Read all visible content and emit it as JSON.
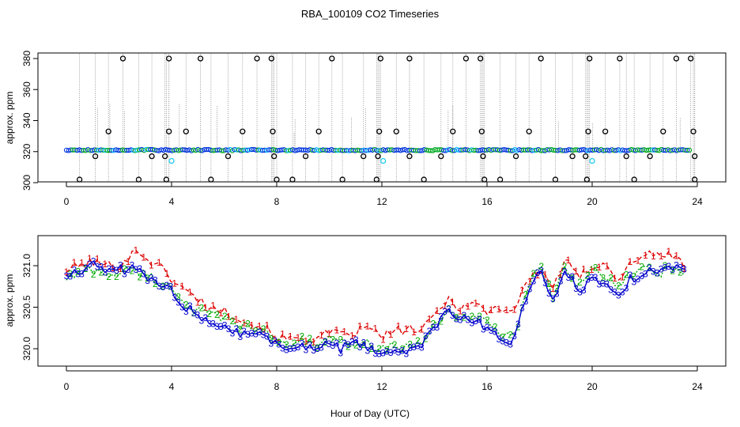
{
  "chart_data": [
    {
      "type": "scatter",
      "title": "RBA_100109  CO2 Timeseries",
      "xlabel": "",
      "ylabel": "approx. ppm",
      "xlim": [
        0,
        24
      ],
      "ylim": [
        300,
        380
      ],
      "xticks": [
        0,
        4,
        8,
        12,
        16,
        20,
        24
      ],
      "xtick_labels": [
        "0",
        "4",
        "8",
        "12",
        "16",
        "20",
        "24"
      ],
      "yticks": [
        300,
        320,
        340,
        360,
        380
      ],
      "ytick_labels": [
        "300",
        "320",
        "340",
        "360",
        "380"
      ],
      "baseline": 321,
      "spike_high_times": [
        2.15,
        3.9,
        5.1,
        7.25,
        7.8,
        10.1,
        11.95,
        13.05,
        15.2,
        15.75,
        18.05,
        19.9,
        21.05,
        23.2,
        23.75
      ],
      "spike_low_times": [
        0.5,
        2.75,
        3.8,
        5.5,
        8.0,
        8.6,
        10.5,
        11.8,
        13.6,
        15.9,
        16.5,
        18.6,
        19.8,
        21.6,
        23.9
      ],
      "mid_high": [
        [
          1.6,
          333
        ],
        [
          3.9,
          333
        ],
        [
          4.55,
          333
        ],
        [
          6.7,
          333
        ],
        [
          7.85,
          333
        ],
        [
          9.6,
          333
        ],
        [
          11.9,
          333
        ],
        [
          12.55,
          333
        ],
        [
          14.7,
          333
        ],
        [
          15.8,
          333
        ],
        [
          17.6,
          333
        ],
        [
          19.85,
          333
        ],
        [
          20.5,
          333
        ],
        [
          22.7,
          333
        ],
        [
          23.85,
          333
        ]
      ],
      "mid_low": [
        [
          1.1,
          317
        ],
        [
          3.25,
          317
        ],
        [
          3.75,
          317
        ],
        [
          6.15,
          317
        ],
        [
          7.9,
          317
        ],
        [
          9.1,
          317
        ],
        [
          11.3,
          317
        ],
        [
          11.85,
          317
        ],
        [
          13.05,
          317
        ],
        [
          14.25,
          317
        ],
        [
          15.85,
          317
        ],
        [
          17.1,
          317
        ],
        [
          19.25,
          317
        ],
        [
          19.75,
          317
        ],
        [
          21.3,
          317
        ],
        [
          22.2,
          317
        ],
        [
          23.9,
          317
        ]
      ],
      "cyan_points": [
        [
          4.0,
          314
        ],
        [
          12.05,
          314
        ],
        [
          20.0,
          314
        ]
      ],
      "legend": []
    },
    {
      "type": "line",
      "title": "",
      "xlabel": "Hour of Day (UTC)",
      "ylabel": "approx. ppm",
      "xlim": [
        0,
        24
      ],
      "ylim": [
        319.85,
        321.35
      ],
      "xticks": [
        0,
        4,
        8,
        12,
        16,
        20,
        24
      ],
      "xtick_labels": [
        "0",
        "4",
        "8",
        "12",
        "16",
        "20",
        "24"
      ],
      "yticks": [
        320.0,
        320.5,
        321.0
      ],
      "ytick_labels": [
        "320.0",
        "320.5",
        "321.0"
      ],
      "series": [
        {
          "name": "1",
          "color": "#dd0000",
          "x": [
            0.0,
            0.5,
            1.0,
            1.5,
            2.0,
            2.4,
            2.7,
            3.0,
            3.5,
            4.0,
            4.5,
            5.0,
            5.5,
            6.0,
            6.5,
            7.0,
            7.5,
            8.0,
            8.5,
            9.0,
            9.5,
            10.0,
            10.5,
            11.0,
            11.5,
            12.0,
            12.5,
            13.0,
            13.5,
            14.0,
            14.5,
            15.0,
            15.5,
            16.0,
            16.5,
            17.0,
            17.5,
            18.0,
            18.5,
            19.0,
            19.5,
            20.0,
            20.5,
            21.0,
            21.5,
            22.0,
            22.5,
            23.0,
            23.5
          ],
          "y": [
            320.95,
            321.0,
            321.05,
            321.0,
            321.0,
            321.1,
            321.2,
            321.1,
            321.0,
            320.85,
            320.7,
            320.6,
            320.5,
            320.45,
            320.4,
            320.3,
            320.25,
            320.15,
            320.1,
            320.15,
            320.1,
            320.2,
            320.15,
            320.2,
            320.25,
            320.15,
            320.2,
            320.25,
            320.2,
            320.4,
            320.6,
            320.5,
            320.55,
            320.45,
            320.5,
            320.45,
            320.8,
            320.95,
            320.75,
            321.05,
            320.85,
            321.0,
            321.05,
            320.8,
            321.05,
            321.15,
            321.1,
            321.15,
            321.0
          ]
        },
        {
          "name": "2",
          "color": "#00aa00",
          "x": [
            0.0,
            0.5,
            1.0,
            1.5,
            2.0,
            2.5,
            3.0,
            3.5,
            4.0,
            4.5,
            5.0,
            5.5,
            6.0,
            6.5,
            7.0,
            7.5,
            8.0,
            8.5,
            9.0,
            9.5,
            10.0,
            10.5,
            11.0,
            11.5,
            12.0,
            12.5,
            13.0,
            13.5,
            14.0,
            14.5,
            15.0,
            15.5,
            16.0,
            16.5,
            17.0,
            17.5,
            18.0,
            18.5,
            19.0,
            19.5,
            20.0,
            20.5,
            21.0,
            21.5,
            22.0,
            22.5,
            23.0,
            23.5
          ],
          "y": [
            320.85,
            320.9,
            320.95,
            320.9,
            320.9,
            320.95,
            320.9,
            320.8,
            320.75,
            320.55,
            320.45,
            320.4,
            320.35,
            320.3,
            320.25,
            320.2,
            320.1,
            320.05,
            320.1,
            320.05,
            320.1,
            320.05,
            320.1,
            320.05,
            320.0,
            320.05,
            320.0,
            320.05,
            320.3,
            320.45,
            320.4,
            320.4,
            320.3,
            320.2,
            320.1,
            320.7,
            321.05,
            320.6,
            321.0,
            320.75,
            320.95,
            320.85,
            320.75,
            320.9,
            320.95,
            320.9,
            321.0,
            320.85
          ]
        },
        {
          "name": "3",
          "color": "#0000cc",
          "x": [
            0.0,
            0.5,
            1.0,
            1.5,
            2.0,
            2.5,
            3.0,
            3.5,
            4.0,
            4.5,
            5.0,
            5.5,
            6.0,
            6.5,
            7.0,
            7.5,
            8.0,
            8.5,
            9.0,
            9.5,
            10.0,
            10.5,
            11.0,
            11.5,
            12.0,
            12.5,
            13.0,
            13.5,
            14.0,
            14.5,
            15.0,
            15.5,
            16.0,
            16.5,
            17.0,
            17.5,
            18.0,
            18.5,
            19.0,
            19.5,
            20.0,
            20.5,
            21.0,
            21.5,
            22.0,
            22.5,
            23.0,
            23.5
          ],
          "y": [
            320.9,
            320.95,
            321.0,
            320.95,
            320.95,
            320.95,
            320.9,
            320.75,
            320.7,
            320.5,
            320.4,
            320.35,
            320.25,
            320.2,
            320.2,
            320.15,
            320.05,
            320.0,
            320.05,
            320.0,
            320.05,
            320.0,
            320.05,
            320.0,
            319.95,
            320.0,
            319.95,
            320.05,
            320.25,
            320.45,
            320.35,
            320.35,
            320.25,
            320.15,
            320.05,
            320.65,
            321.0,
            320.55,
            320.95,
            320.7,
            320.85,
            320.8,
            320.65,
            320.85,
            320.9,
            320.95,
            321.0,
            320.95
          ]
        }
      ],
      "legend": []
    }
  ]
}
